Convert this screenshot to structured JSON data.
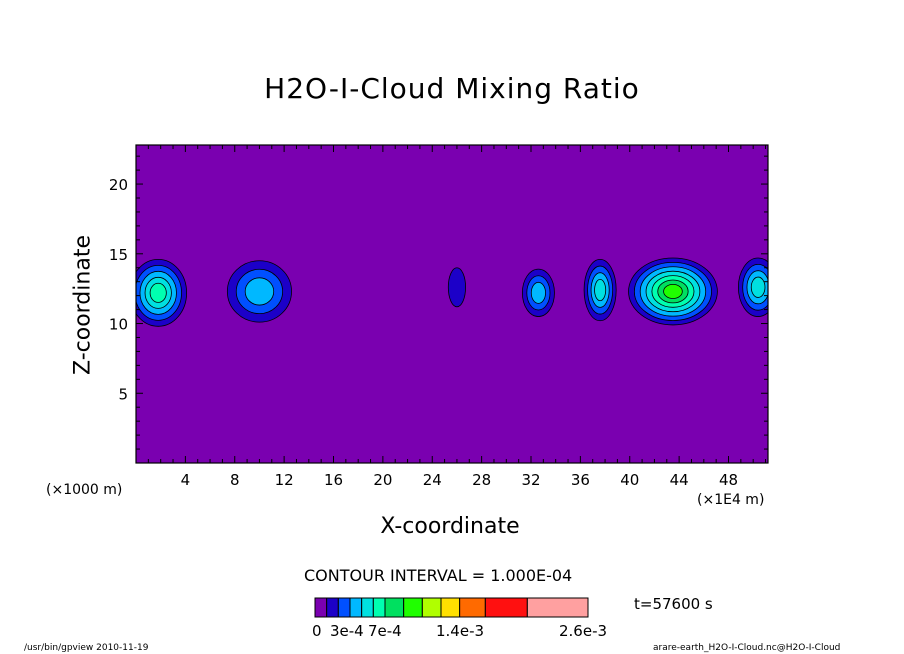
{
  "chart_data": {
    "type": "heatmap",
    "title": "H2O-I-Cloud Mixing Ratio",
    "xlabel": "X-coordinate",
    "ylabel": "Z-coordinate",
    "x_unit_note": "(×1E4 m)",
    "y_unit_note": "(×1000 m)",
    "x_ticks": [
      "4",
      "8",
      "12",
      "16",
      "20",
      "24",
      "28",
      "32",
      "36",
      "40",
      "44",
      "48"
    ],
    "y_ticks": [
      "5",
      "10",
      "15",
      "20"
    ],
    "xlim": [
      0,
      51.2
    ],
    "ylim": [
      0,
      22.8
    ],
    "contour_interval": "CONTOUR INTERVAL = 1.000E-04",
    "time_label": "t=57600 s",
    "colorbar": {
      "colors": [
        "#7a00b0",
        "#1c00c8",
        "#0050ff",
        "#00b8ff",
        "#00e0e0",
        "#00ffb0",
        "#00e060",
        "#20ff00",
        "#b0ff00",
        "#ffe000",
        "#ff6a00",
        "#ff1010",
        "#ffa0a0"
      ],
      "labels": [
        "0",
        "3e-4",
        "7e-4",
        "1.4e-3",
        "2.6e-3"
      ]
    },
    "background_color": "#7a00b0",
    "cloud_blobs": [
      {
        "x": 1.8,
        "z": 12.2,
        "rx": 2.3,
        "rz": 2.4,
        "levels": 5
      },
      {
        "x": 10.0,
        "z": 12.3,
        "rx": 2.6,
        "rz": 2.2,
        "levels": 3
      },
      {
        "x": 26.0,
        "z": 12.6,
        "rx": 0.7,
        "rz": 1.4,
        "levels": 1
      },
      {
        "x": 32.6,
        "z": 12.2,
        "rx": 1.3,
        "rz": 1.7,
        "levels": 3
      },
      {
        "x": 37.6,
        "z": 12.4,
        "rx": 1.3,
        "rz": 2.2,
        "levels": 4
      },
      {
        "x": 43.5,
        "z": 12.3,
        "rx": 3.6,
        "rz": 2.4,
        "levels": 7
      },
      {
        "x": 50.4,
        "z": 12.6,
        "rx": 1.6,
        "rz": 2.1,
        "levels": 4
      }
    ],
    "grid": false
  },
  "footer": {
    "left": "/usr/bin/gpview  2010-11-19",
    "right": "arare-earth_H2O-I-Cloud.nc@H2O-I-Cloud"
  }
}
